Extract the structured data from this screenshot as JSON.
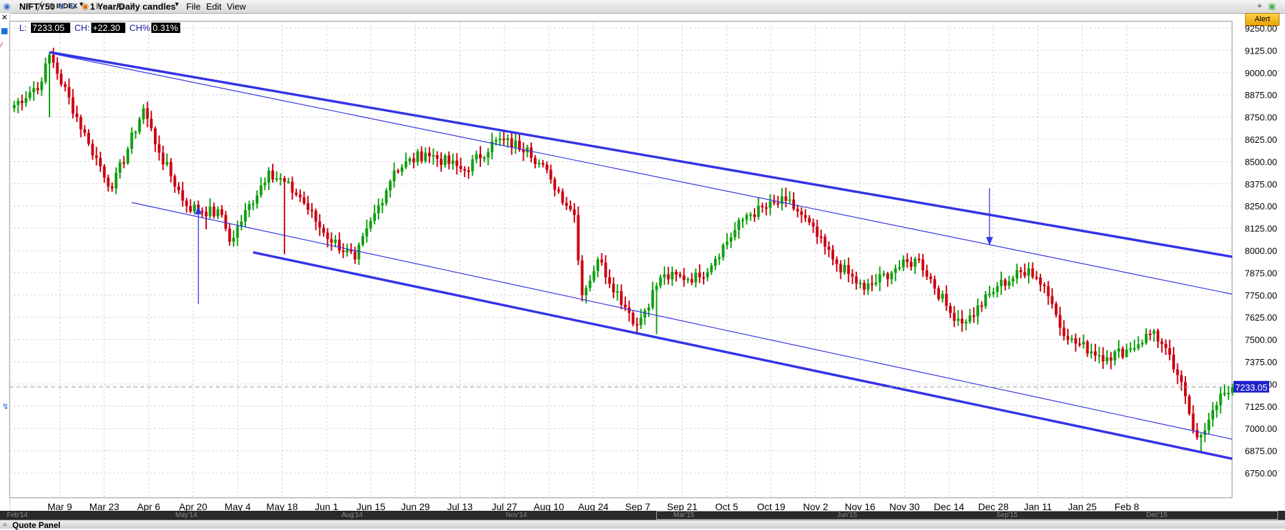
{
  "toolbar": {
    "symbol": "NIFTY50",
    "symbol_type": "INDEX",
    "period": "1 Year/Daily candles",
    "menus": [
      "File",
      "Edit",
      "View"
    ],
    "alert_label": "Alert"
  },
  "quote": {
    "l_label": "L:",
    "l_value": "7233.05",
    "ch_label": "CH:",
    "ch_value": "+22.30",
    "chp_label": "CH%:",
    "chp_value": "0.31%"
  },
  "navigator_labels": [
    "Feb'14",
    "May'14",
    "Aug'14",
    "Nov'14",
    "Mar'15",
    "Jun'15",
    "Sep'15",
    "Dec'15"
  ],
  "quote_panel_title": "Quote Panel",
  "colors": {
    "up": "#11a011",
    "down": "#cc0011",
    "channel": "#3333e6",
    "last_price_bg": "#2222cc"
  },
  "chart_data": {
    "type": "ohlc",
    "title": "",
    "ylim": [
      6750,
      9250
    ],
    "y_ticks": [
      9250,
      9125,
      9000,
      8875,
      8750,
      8625,
      8500,
      8375,
      8250,
      8125,
      8000,
      7875,
      7750,
      7625,
      7500,
      7375,
      7250,
      7125,
      7000,
      6875,
      6750
    ],
    "x_tick_labels": [
      "Mar 9",
      "Mar 23",
      "Apr 6",
      "Apr 20",
      "May 4",
      "May 18",
      "Jun 1",
      "Jun 15",
      "Jun 29",
      "Jul 13",
      "Jul 27",
      "Aug 10",
      "Aug 24",
      "Sep 7",
      "Sep 21",
      "Oct 5",
      "Oct 19",
      "Nov 2",
      "Nov 16",
      "Nov 30",
      "Dec 14",
      "Dec 28",
      "Jan 11",
      "Jan 25",
      "Feb 8"
    ],
    "last_price": 7233.05,
    "grid": true,
    "series": [
      {
        "waypoints": [
          {
            "i": 0,
            "c": 8800
          },
          {
            "i": 8,
            "c": 8950
          },
          {
            "i": 10,
            "c": 9100
          },
          {
            "i": 20,
            "c": 8600
          },
          {
            "i": 26,
            "c": 8350
          },
          {
            "i": 34,
            "c": 8800
          },
          {
            "i": 38,
            "c": 8550
          },
          {
            "i": 45,
            "c": 8250
          },
          {
            "i": 54,
            "c": 8200
          },
          {
            "i": 56,
            "c": 8050
          },
          {
            "i": 66,
            "c": 8450
          },
          {
            "i": 74,
            "c": 8300
          },
          {
            "i": 80,
            "c": 8100
          },
          {
            "i": 88,
            "c": 7950
          },
          {
            "i": 98,
            "c": 8450
          },
          {
            "i": 106,
            "c": 8550
          },
          {
            "i": 116,
            "c": 8450
          },
          {
            "i": 124,
            "c": 8620
          },
          {
            "i": 132,
            "c": 8580
          },
          {
            "i": 138,
            "c": 8400
          },
          {
            "i": 144,
            "c": 8200
          },
          {
            "i": 146,
            "c": 7750
          },
          {
            "i": 150,
            "c": 7950
          },
          {
            "i": 158,
            "c": 7650
          },
          {
            "i": 160,
            "c": 7580
          },
          {
            "i": 166,
            "c": 7850
          },
          {
            "i": 176,
            "c": 7850
          },
          {
            "i": 188,
            "c": 8200
          },
          {
            "i": 198,
            "c": 8280
          },
          {
            "i": 202,
            "c": 8200
          },
          {
            "i": 210,
            "c": 7950
          },
          {
            "i": 218,
            "c": 7780
          },
          {
            "i": 226,
            "c": 7900
          },
          {
            "i": 232,
            "c": 7950
          },
          {
            "i": 240,
            "c": 7650
          },
          {
            "i": 244,
            "c": 7600
          },
          {
            "i": 252,
            "c": 7800
          },
          {
            "i": 260,
            "c": 7900
          },
          {
            "i": 264,
            "c": 7800
          },
          {
            "i": 270,
            "c": 7500
          },
          {
            "i": 280,
            "c": 7400
          },
          {
            "i": 286,
            "c": 7450
          },
          {
            "i": 292,
            "c": 7550
          },
          {
            "i": 298,
            "c": 7300
          },
          {
            "i": 303,
            "c": 6950
          },
          {
            "i": 306,
            "c": 7050
          },
          {
            "i": 310,
            "c": 7200
          },
          {
            "i": 312,
            "c": 7233.05
          }
        ],
        "lows": [
          {
            "i": 10,
            "low": 8750
          },
          {
            "i": 50,
            "low": 8120
          },
          {
            "i": 70,
            "low": 7980
          },
          {
            "i": 157,
            "low": 7660
          },
          {
            "i": 165,
            "low": 7530
          },
          {
            "i": 241,
            "low": 7570
          },
          {
            "i": 285,
            "low": 7400
          },
          {
            "i": 304,
            "low": 6870
          }
        ]
      }
    ],
    "trendlines": [
      {
        "from": {
          "i": 10,
          "y": 9115
        },
        "to": {
          "i": 312,
          "y": 7965
        },
        "weight": "thick"
      },
      {
        "from": {
          "i": 10,
          "y": 9110
        },
        "to": {
          "i": 312,
          "y": 7755
        },
        "weight": "thin"
      },
      {
        "from": {
          "i": 31,
          "y": 8270
        },
        "to": {
          "i": 312,
          "y": 6940
        },
        "weight": "thin"
      },
      {
        "from": {
          "i": 62,
          "y": 7990
        },
        "to": {
          "i": 312,
          "y": 6830
        },
        "weight": "thick"
      }
    ],
    "arrows": [
      {
        "from": {
          "i": 48,
          "y": 7700
        },
        "to": {
          "i": 48,
          "y": 8250
        }
      },
      {
        "from": {
          "i": 250,
          "y": 8350
        },
        "to": {
          "i": 250,
          "y": 8030
        }
      }
    ]
  }
}
